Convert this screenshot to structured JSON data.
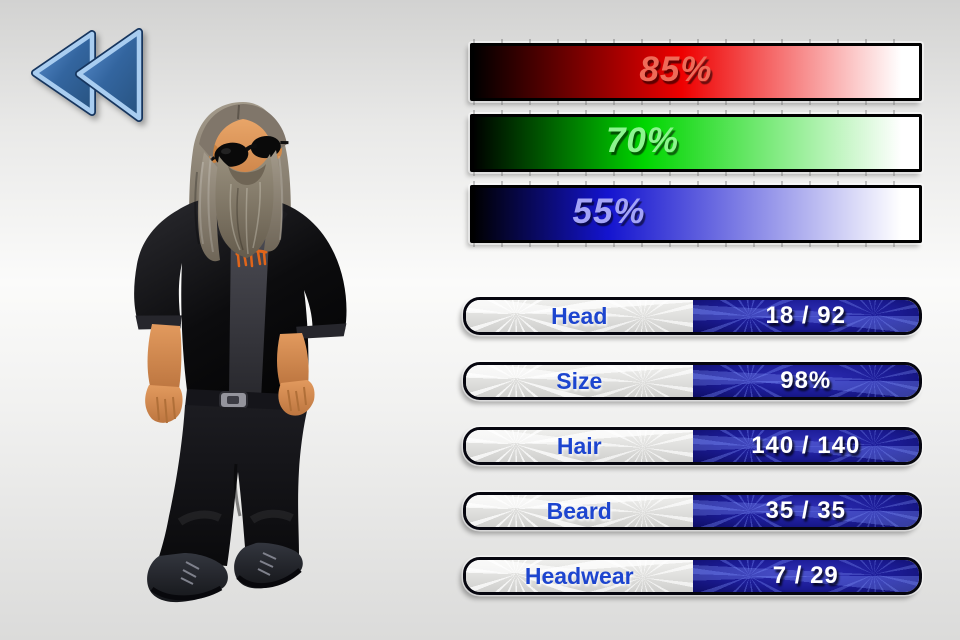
{
  "back_button": {
    "icon": "double-chevron-left-icon"
  },
  "character": {
    "description": "3D male model: long grey hair, long grey beard, round sunglasses, black jacket with rolled-up sleeves over dark band t-shirt with orange print, belt, baggy black pants, black boots"
  },
  "sliders": [
    {
      "channel": "red",
      "label": "85%",
      "percent": 85,
      "color": "#ee0000",
      "text_color": "#ef6a58"
    },
    {
      "channel": "green",
      "label": "70%",
      "percent": 70,
      "color": "#00d600",
      "text_color": "#8df58f"
    },
    {
      "channel": "blue",
      "label": "55%",
      "percent": 55,
      "color": "#1414cf",
      "text_color": "#a4a4f7"
    }
  ],
  "options": [
    {
      "id": "head",
      "label": "Head",
      "value": "18 / 92"
    },
    {
      "id": "size",
      "label": "Size",
      "value": "98%"
    },
    {
      "id": "hair",
      "label": "Hair",
      "value": "140 / 140"
    },
    {
      "id": "beard",
      "label": "Beard",
      "value": "35 / 35"
    },
    {
      "id": "headwear",
      "label": "Headwear",
      "value": "7 / 29"
    }
  ],
  "ui_colors": {
    "row_blue": "#1b1b94",
    "label_blue": "#1d45cf"
  }
}
